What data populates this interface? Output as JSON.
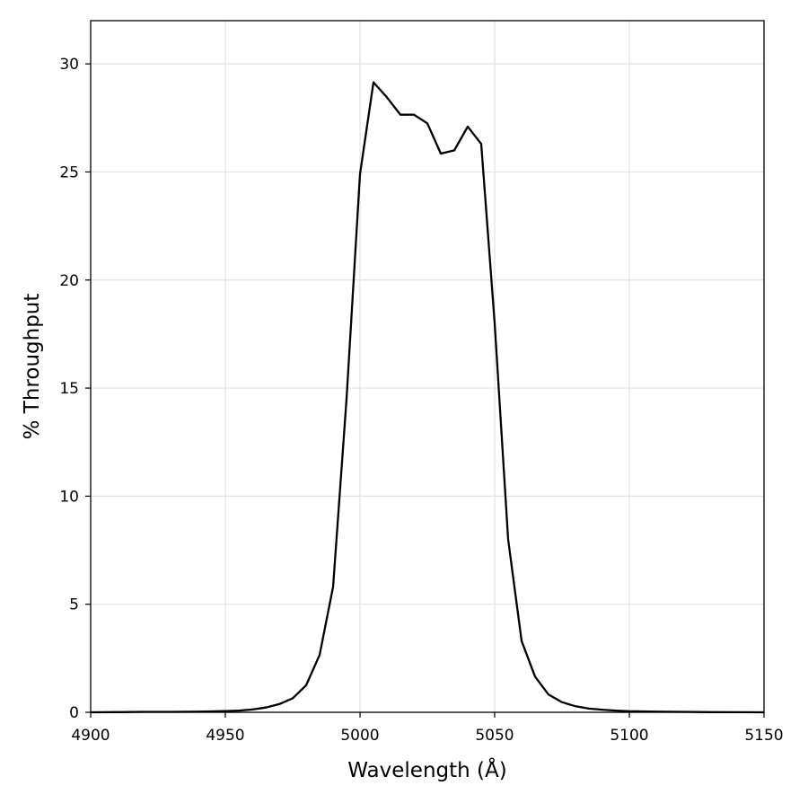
{
  "chart_data": {
    "type": "line",
    "title": "",
    "xlabel": "Wavelength (Å)",
    "ylabel": "% Throughput",
    "xlim": [
      4900,
      5150
    ],
    "ylim": [
      0,
      32
    ],
    "grid": true,
    "xticks": [
      4900,
      4950,
      5000,
      5050,
      5100,
      5150
    ],
    "yticks": [
      0,
      5,
      10,
      15,
      20,
      25,
      30
    ],
    "series": [
      {
        "name": "throughput",
        "color": "#000000",
        "x": [
          4900,
          4910,
          4920,
          4930,
          4940,
          4950,
          4955,
          4960,
          4965,
          4970,
          4975,
          4980,
          4985,
          4990,
          4995,
          5000,
          5005,
          5010,
          5015,
          5020,
          5025,
          5030,
          5035,
          5040,
          5045,
          5050,
          5055,
          5060,
          5065,
          5070,
          5075,
          5080,
          5085,
          5090,
          5095,
          5100,
          5110,
          5120,
          5130,
          5140,
          5150
        ],
        "y": [
          0,
          0.01,
          0.02,
          0.02,
          0.03,
          0.06,
          0.08,
          0.13,
          0.22,
          0.38,
          0.65,
          1.25,
          2.65,
          5.8,
          14.5,
          24.9,
          29.15,
          28.45,
          27.65,
          27.65,
          27.25,
          25.85,
          26.0,
          27.1,
          26.3,
          18.0,
          8.0,
          3.3,
          1.65,
          0.82,
          0.47,
          0.28,
          0.17,
          0.12,
          0.08,
          0.05,
          0.03,
          0.02,
          0.01,
          0.005,
          0
        ]
      }
    ]
  }
}
